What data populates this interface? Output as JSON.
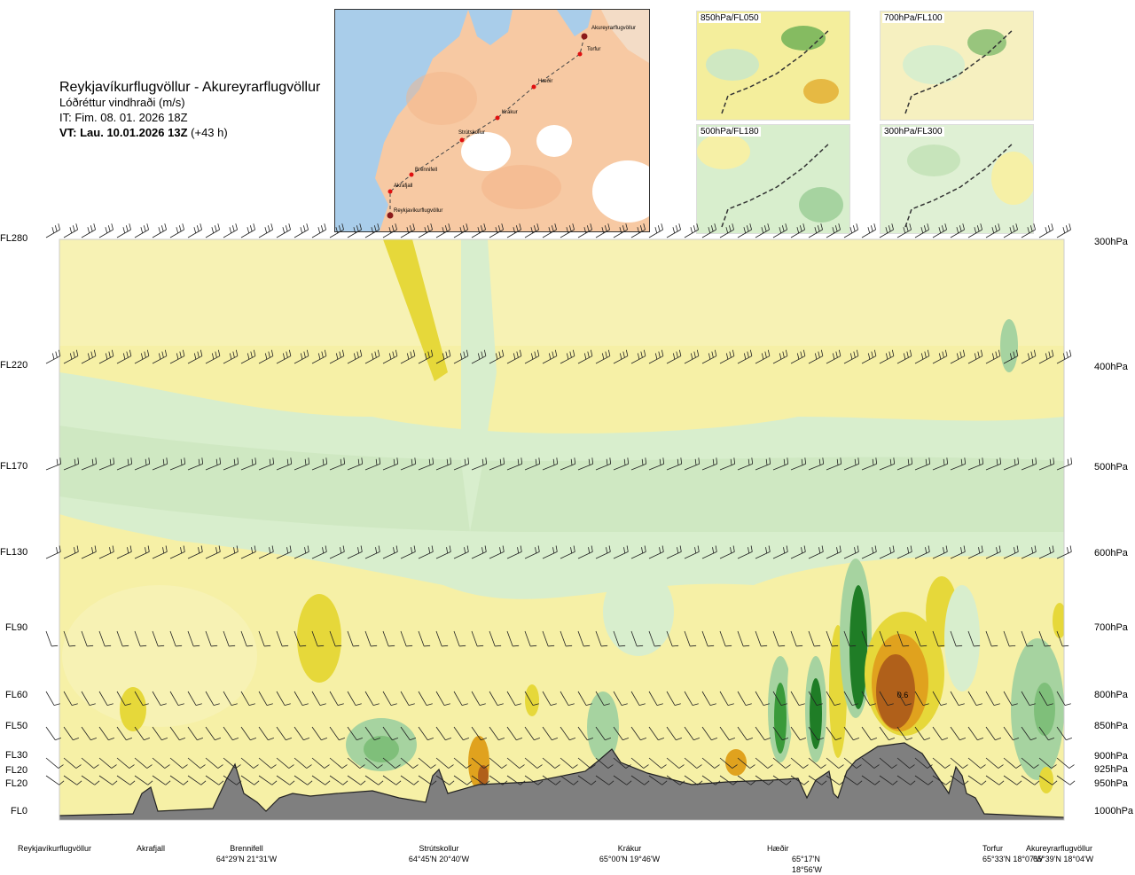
{
  "header": {
    "route": "Reykjavíkurflugvöllur - Akureyrarflugvöllur",
    "variable": "Lóðréttur vindhraði (m/s)",
    "init_time": "IT: Fim. 08. 01. 2026 18Z",
    "valid_prefix": "VT: Lau. 10.01.2026 13Z",
    "valid_suffix": " (+43 h)"
  },
  "route_map": {
    "waypoints": [
      "Akureyrarflugvöllur",
      "Torfur",
      "Hæðir",
      "Krákur",
      "Strútskollur",
      "Brennifell",
      "Akrafjall",
      "Reykjavíkurflugvöllur"
    ]
  },
  "mini_maps": [
    {
      "label": "850hPa/FL050"
    },
    {
      "label": "700hPa/FL100"
    },
    {
      "label": "500hPa/FL180"
    },
    {
      "label": "300hPa/FL300"
    }
  ],
  "colors": {
    "terrain": "#7f7f7f",
    "up_weak": "#f6f0a6",
    "up_mod": "#e6d83a",
    "up_strong": "#e0a21e",
    "up_vstrong": "#b0601a",
    "down_weak": "#d8eecd",
    "down_mod": "#a6d3a0",
    "down_strong": "#3a9a3a",
    "neutral": "#fbfbe8"
  },
  "chart_data": {
    "type": "heatmap",
    "title": "Lóðréttur vindhraði (m/s)",
    "y_levels": [
      {
        "fl": "FL280",
        "hpa": "300hPa"
      },
      {
        "fl": "FL220",
        "hpa": "400hPa"
      },
      {
        "fl": "FL170",
        "hpa": "500hPa"
      },
      {
        "fl": "FL130",
        "hpa": "600hPa"
      },
      {
        "fl": "FL90",
        "hpa": "700hPa"
      },
      {
        "fl": "FL60",
        "hpa": "800hPa"
      },
      {
        "fl": "FL50",
        "hpa": "850hPa"
      },
      {
        "fl": "FL30",
        "hpa": "900hPa"
      },
      {
        "fl": "FL20",
        "hpa": "925hPa"
      },
      {
        "fl": "FL20",
        "hpa": "950hPa"
      },
      {
        "fl": "FL0",
        "hpa": "1000hPa"
      }
    ],
    "x_locations": [
      {
        "name": "Reykjavíkurflugvöllur",
        "coord": ""
      },
      {
        "name": "Akrafjall",
        "coord": ""
      },
      {
        "name": "Brennifell",
        "coord": "64°29'N 21°31'W"
      },
      {
        "name": "Strútskollur",
        "coord": "64°45'N 20°40'W"
      },
      {
        "name": "Krákur",
        "coord": "65°00'N 19°46'W"
      },
      {
        "name": "Hæðir",
        "coord": "65°17'N 18°56'W"
      },
      {
        "name": "Torfur",
        "coord": "65°33'N 18°07'W"
      },
      {
        "name": "Akureyrarflugvöllur",
        "coord": "65°39'N 18°04'W"
      }
    ],
    "annotations": [
      "0.6"
    ]
  }
}
